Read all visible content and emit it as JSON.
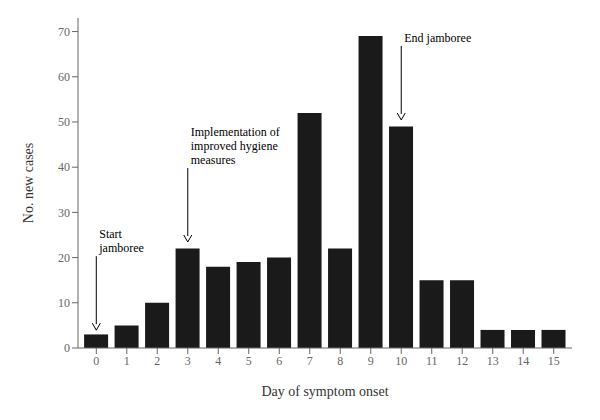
{
  "chart_data": {
    "type": "bar",
    "x": [
      0,
      1,
      2,
      3,
      4,
      5,
      6,
      7,
      8,
      9,
      10,
      11,
      12,
      13,
      14,
      15
    ],
    "values": [
      3,
      5,
      10,
      22,
      18,
      19,
      20,
      52,
      22,
      69,
      49,
      15,
      15,
      4,
      4,
      4
    ],
    "color": "#1a1a1a",
    "xlabel": "Day of symptom onset",
    "ylabel": "No. new cases",
    "xlim": [
      -0.6,
      15.6
    ],
    "xticks": [
      0,
      1,
      2,
      3,
      4,
      5,
      6,
      7,
      8,
      9,
      10,
      11,
      12,
      13,
      14,
      15
    ],
    "ylim": [
      0,
      73
    ],
    "yticks": [
      0,
      10,
      20,
      30,
      40,
      50,
      60,
      70
    ],
    "grid": false,
    "annotations": [
      {
        "text": "Start\njamboree",
        "x": 0,
        "y": 3.5
      },
      {
        "text": "Implementation of\nimproved hygiene\nmeasures",
        "x": 3,
        "y": 23
      },
      {
        "text": "End jamboree",
        "x": 10,
        "y": 50
      }
    ]
  }
}
